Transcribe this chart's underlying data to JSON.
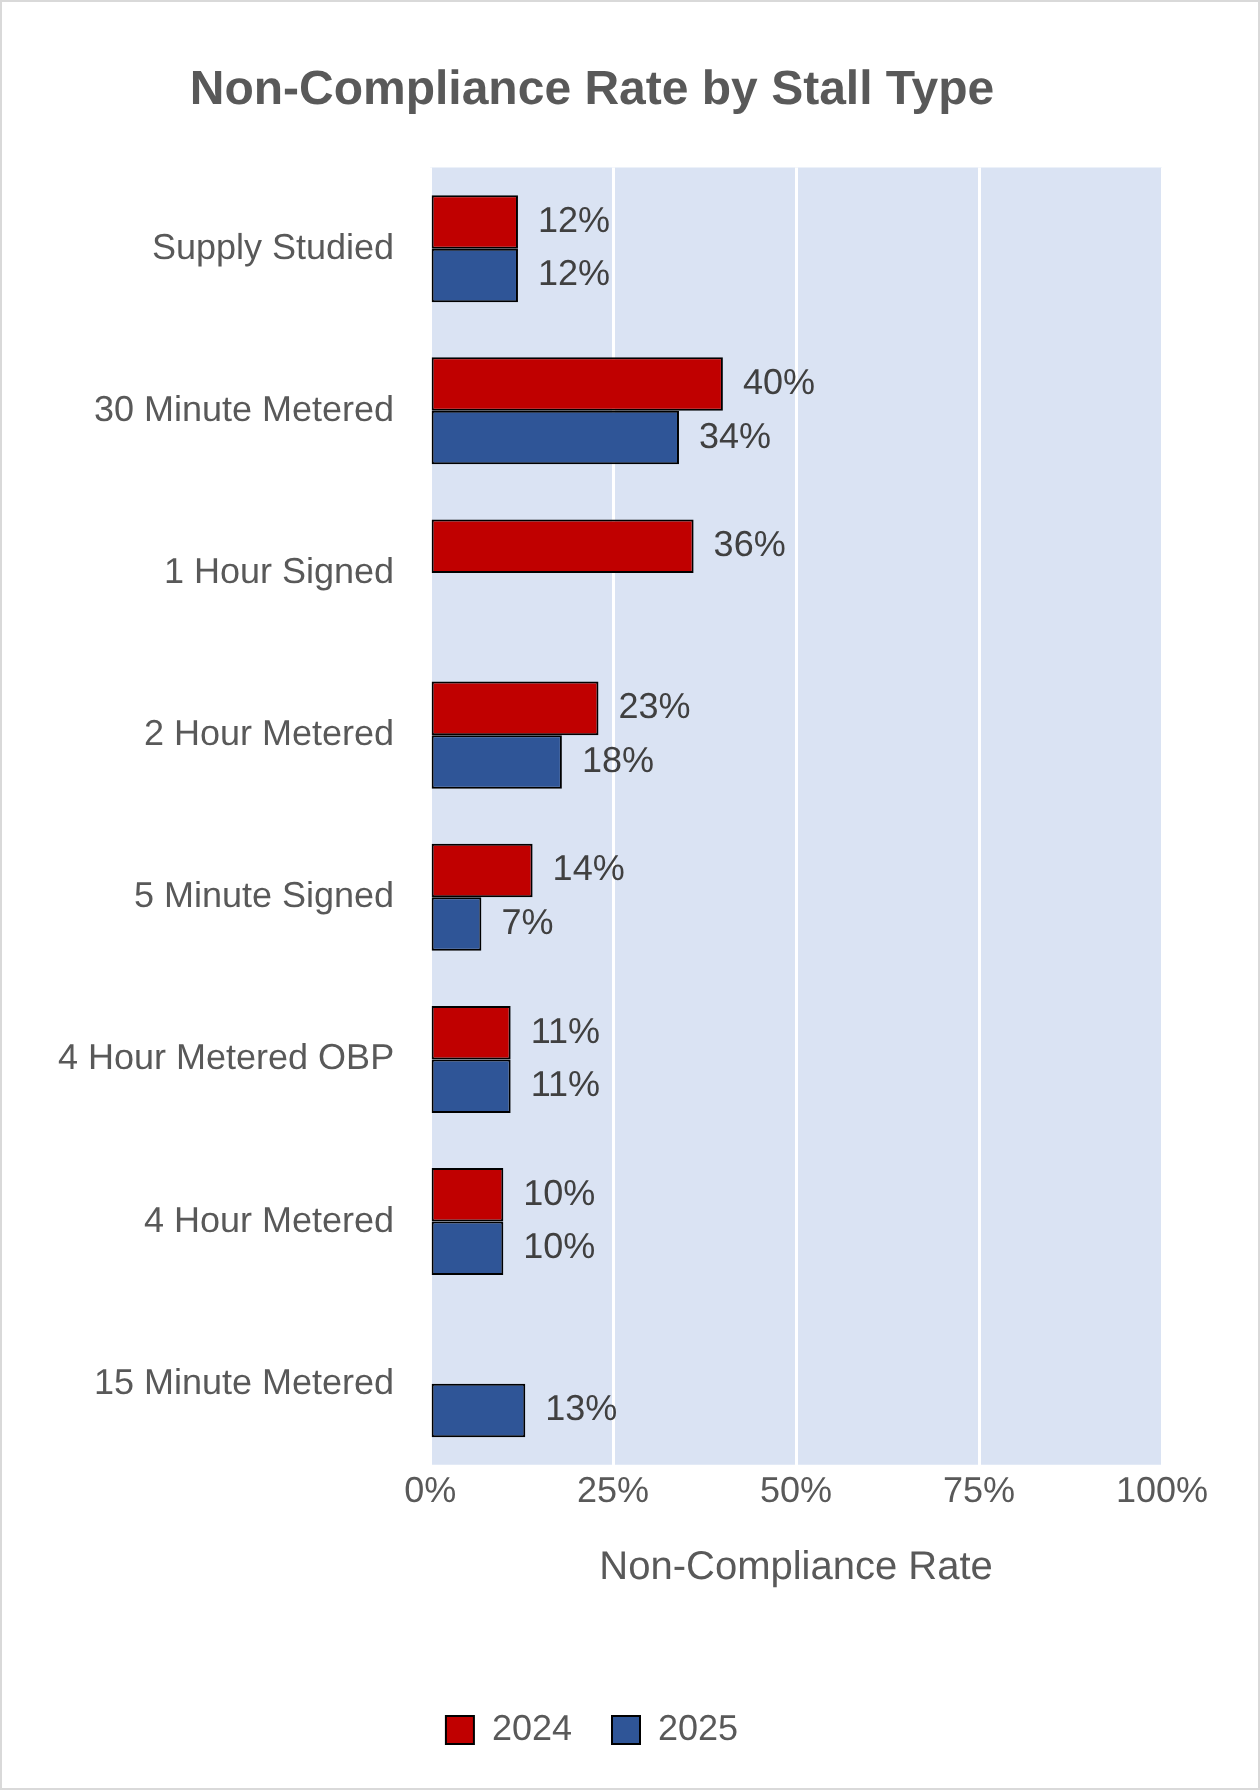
{
  "chart_data": {
    "type": "bar",
    "orientation": "horizontal",
    "title": "Non-Compliance Rate by Stall Type",
    "xlabel": "Non-Compliance Rate",
    "categories": [
      "Supply Studied",
      "30 Minute Metered",
      "1 Hour Signed",
      "2 Hour Metered",
      "5 Minute Signed",
      "4 Hour Metered OBP",
      "4 Hour Metered",
      "15 Minute Metered"
    ],
    "series": [
      {
        "name": "2024",
        "color": "#c00000",
        "values": [
          12,
          40,
          36,
          23,
          14,
          11,
          10,
          null
        ],
        "value_labels": [
          "12%",
          "40%",
          "36%",
          "23%",
          "14%",
          "11%",
          "10%",
          null
        ]
      },
      {
        "name": "2025",
        "color": "#2f5597",
        "values": [
          12,
          34,
          null,
          18,
          7,
          11,
          10,
          13
        ],
        "value_labels": [
          "12%",
          "34%",
          null,
          "18%",
          "7%",
          "11%",
          "10%",
          "13%"
        ]
      }
    ],
    "xlim": [
      0,
      100
    ],
    "xticks": [
      {
        "value": 0,
        "label": "0%"
      },
      {
        "value": 25,
        "label": "25%"
      },
      {
        "value": 50,
        "label": "50%"
      },
      {
        "value": 75,
        "label": "75%"
      },
      {
        "value": 100,
        "label": "100%"
      }
    ],
    "grid": "x",
    "legend": "bottom"
  }
}
